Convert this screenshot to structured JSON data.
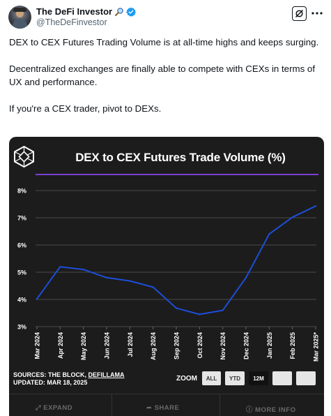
{
  "author": {
    "display_name": "The DeFi Investor",
    "name_emoji": "magnifying-glass-icon",
    "verified": true,
    "handle": "@TheDeFinvestor"
  },
  "tweet": {
    "paragraphs": [
      "DEX to CEX Futures Trading Volume is at all-time highs and keeps surging.",
      "Decentralized exchanges are finally able to compete with CEXs in terms of UX and performance.",
      "If you're a CEX trader, pivot to DEXs."
    ]
  },
  "chart": {
    "sources_label": "SOURCES: THE BLOCK,",
    "sources_link": "DEFILLAMA",
    "updated": "UPDATED: MAR 18, 2025",
    "zoom_label": "ZOOM",
    "zoom_buttons": [
      "ALL",
      "YTD",
      "12M",
      "",
      ""
    ],
    "zoom_active": "12M",
    "bottom_actions": [
      "EXPAND",
      "SHARE",
      "MORE INFO"
    ]
  },
  "chart_data": {
    "type": "line",
    "title": "DEX to CEX Futures Trade Volume (%)",
    "categories": [
      "Mar 2024",
      "Apr 2024",
      "May 2024",
      "Jun 2024",
      "Jul 2024",
      "Aug 2024",
      "Sep 2024",
      "Oct 2024",
      "Nov 2024",
      "Dec 2024",
      "Jan 2025",
      "Feb 2025",
      "Mar 2025*"
    ],
    "series": [
      {
        "values": [
          4.02,
          5.2,
          5.1,
          4.8,
          4.68,
          4.45,
          3.68,
          3.45,
          3.6,
          4.8,
          6.4,
          7.02,
          7.43
        ]
      }
    ],
    "yticks": [
      "8%",
      "7%",
      "6%",
      "5%",
      "4%",
      "3%"
    ],
    "ylim": [
      3,
      8
    ],
    "grid": true,
    "line_color": "#1d4ed8",
    "background": "#1c1c1c",
    "accent": "#7a3fd1"
  },
  "colors": {
    "verified": "#1d9bf0",
    "text": "#0f1419",
    "muted": "#536471"
  }
}
